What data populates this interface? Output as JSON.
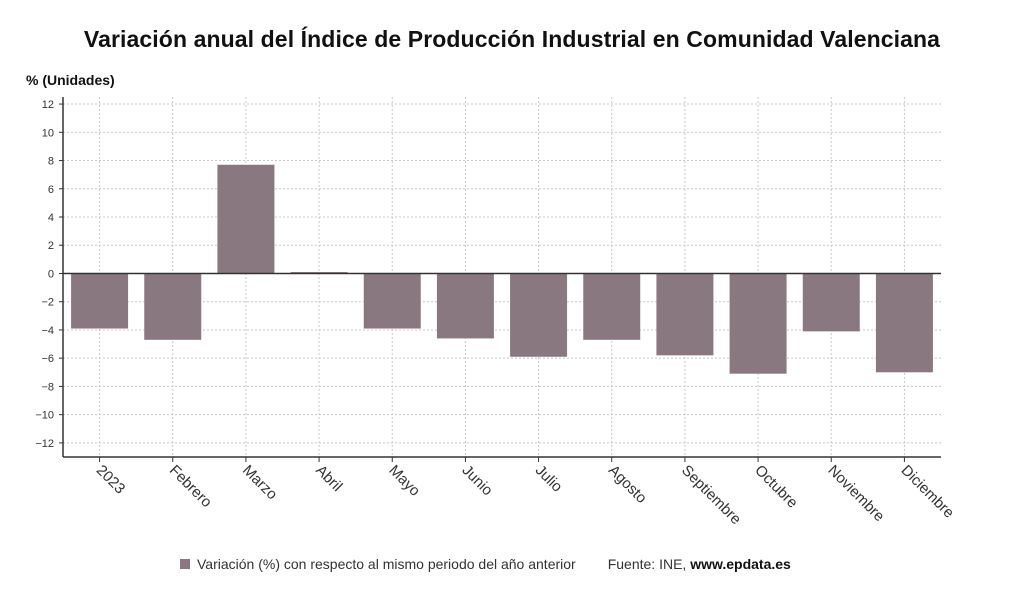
{
  "title": "Variación anual del Índice de Producción Industrial en Comunidad Valenciana",
  "unit_label": "% (Unidades)",
  "legend_label": "Variación (%) con respecto al mismo periodo del año anterior",
  "source_prefix": "Fuente: INE,",
  "source_site": "www.epdata.es",
  "colors": {
    "bar": "#8a7880",
    "grid": "#c8c8c8",
    "axis": "#333333"
  },
  "chart_data": {
    "type": "bar",
    "title": "Variación anual del Índice de Producción Industrial en Comunidad Valenciana",
    "ylabel": "% (Unidades)",
    "ylim": [
      -13,
      12.5
    ],
    "yticks": [
      12,
      10,
      8,
      6,
      4,
      2,
      0,
      -2,
      -4,
      -6,
      -8,
      -10,
      -12
    ],
    "ytick_labels": [
      "12",
      "10",
      "8",
      "6",
      "4",
      "2",
      "0",
      "−2",
      "−4",
      "−6",
      "−8",
      "−10",
      "−12"
    ],
    "grid": true,
    "categories": [
      "2023",
      "Febrero",
      "Marzo",
      "Abril",
      "Mayo",
      "Junio",
      "Julio",
      "Agosto",
      "Septiembre",
      "Octubre",
      "Noviembre",
      "Diciembre"
    ],
    "series": [
      {
        "name": "Variación (%) con respecto al mismo periodo del año anterior",
        "values": [
          -3.9,
          -4.7,
          7.7,
          0.1,
          -3.9,
          -4.6,
          -5.9,
          -4.7,
          -5.8,
          -7.1,
          -4.1,
          -7.0
        ]
      }
    ]
  }
}
